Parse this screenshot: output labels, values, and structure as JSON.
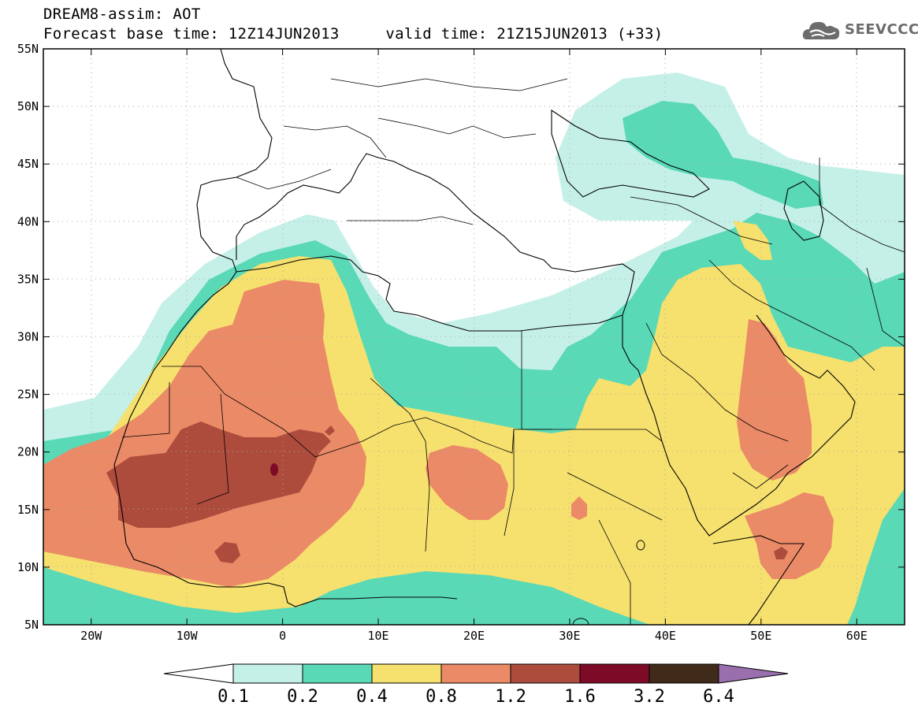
{
  "header": {
    "line1": "DREAM8-assim: AOT",
    "line2": "Forecast base time: 12Z14JUN2013     valid time: 21Z15JUN2013 (+33)"
  },
  "logo": {
    "text": "SEEVCCC",
    "icon": "cloud-icon"
  },
  "map": {
    "lon_range": [
      -25,
      65
    ],
    "lat_range": [
      5,
      55
    ],
    "lat_ticks": [
      "55N",
      "50N",
      "45N",
      "40N",
      "35N",
      "30N",
      "25N",
      "20N",
      "15N",
      "10N",
      "5N"
    ],
    "lon_ticks": [
      "20W",
      "10W",
      "0",
      "10E",
      "20E",
      "30E",
      "40E",
      "50E",
      "60E"
    ],
    "grid": "dotted"
  },
  "colorbar": {
    "labels": [
      "0.1",
      "0.2",
      "0.4",
      "0.8",
      "1.2",
      "1.6",
      "3.2",
      "6.4"
    ],
    "colors": [
      "#ffffff",
      "#c5f0e8",
      "#5ad9b6",
      "#f6e06e",
      "#eb8a66",
      "#ad4c3c",
      "#7d0a26",
      "#402a1a",
      "#9a6fad"
    ]
  }
}
